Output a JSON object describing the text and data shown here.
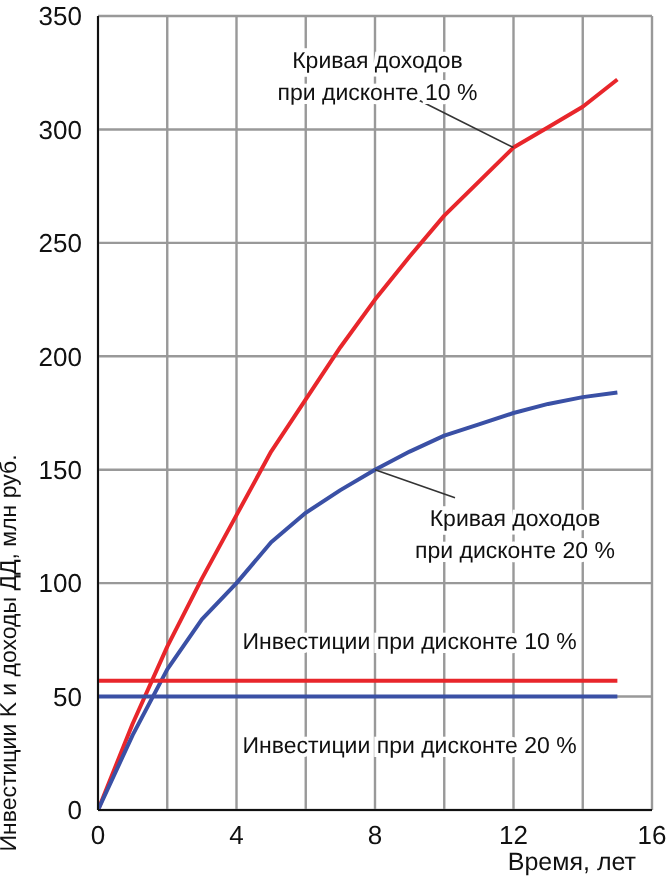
{
  "chart_data": {
    "type": "line",
    "xlabel": "Время, лет",
    "ylabel": "Инвестиции K и доходы ДД, млн руб.",
    "x": [
      0,
      1,
      2,
      3,
      4,
      5,
      6,
      7,
      8,
      9,
      10,
      11,
      12,
      13,
      14,
      15
    ],
    "series": [
      {
        "color": "#e8262b",
        "values": [
          0,
          38,
          72,
          102,
          130,
          158,
          181,
          204,
          225,
          244,
          262,
          277,
          292,
          301,
          310,
          322
        ]
      },
      {
        "color": "#3a50a5",
        "values": [
          0,
          33,
          62,
          84,
          100,
          118,
          131,
          141,
          150,
          158,
          165,
          170,
          175,
          179,
          182,
          184
        ]
      },
      {
        "color": "#e8262b",
        "values": [
          57,
          57,
          57,
          57,
          57,
          57,
          57,
          57,
          57,
          57,
          57,
          57,
          57,
          57,
          57,
          57
        ]
      },
      {
        "color": "#3a50a5",
        "values": [
          50,
          50,
          50,
          50,
          50,
          50,
          50,
          50,
          50,
          50,
          50,
          50,
          50,
          50,
          50,
          50
        ]
      }
    ],
    "xlim": [
      0,
      16
    ],
    "xticks": [
      0,
      {
        "value": 2,
        "label": null
      },
      4,
      {
        "value": 6,
        "label": null
      },
      8,
      {
        "value": 10,
        "label": null
      },
      12,
      {
        "value": 14,
        "label": null
      },
      16
    ],
    "ylim": [
      0,
      350
    ],
    "yticks": [
      0,
      50,
      100,
      150,
      200,
      250,
      300,
      350
    ],
    "grid": true,
    "marker": "none",
    "line_style": "solid",
    "annotations": [
      {
        "text": "Кривая доходов\nпри дисконте 10 %",
        "x": 12,
        "y": 292
      },
      {
        "text": "Кривая доходов\nпри дисконте 20 %",
        "x": 8,
        "y": 150
      },
      {
        "text": "Инвестиции при дисконте 10 %",
        "x": 9,
        "y": 57
      },
      {
        "text": "Инвестиции при дисконте 20 %",
        "x": 9,
        "y": 50
      }
    ]
  }
}
